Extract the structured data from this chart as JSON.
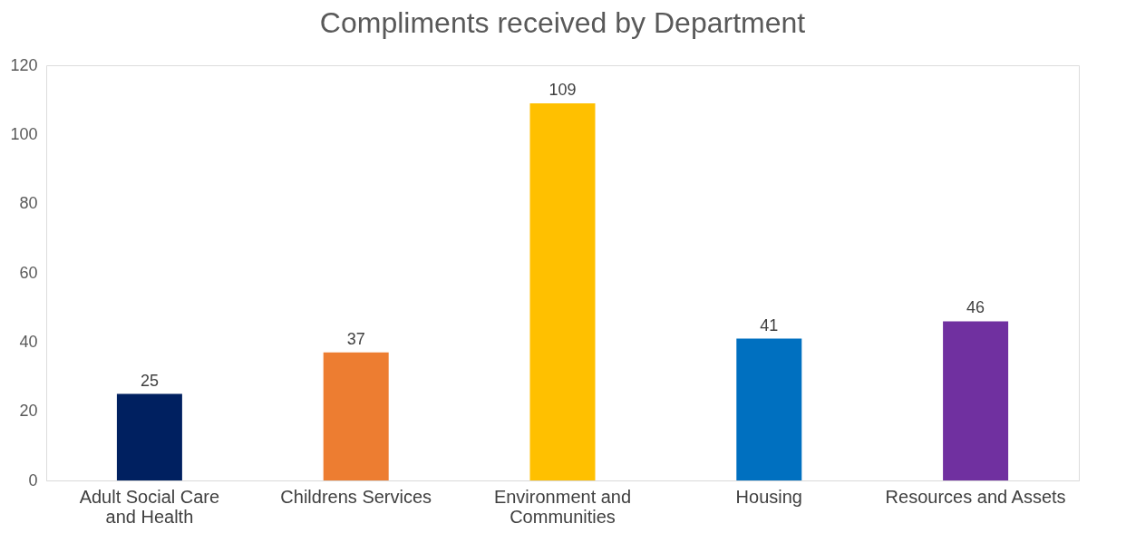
{
  "chart_data": {
    "type": "bar",
    "title": "Compliments received by Department",
    "categories": [
      "Adult Social Care and Health",
      "Childrens Services",
      "Environment and Communities",
      "Housing",
      "Resources and Assets"
    ],
    "values": [
      25,
      37,
      109,
      41,
      46
    ],
    "colors": [
      "#002060",
      "#ed7d31",
      "#ffc000",
      "#0070c0",
      "#7030a0"
    ],
    "ylim": [
      0,
      120
    ],
    "yticks": [
      0,
      20,
      40,
      60,
      80,
      100,
      120
    ],
    "grid": false,
    "data_labels": true
  }
}
